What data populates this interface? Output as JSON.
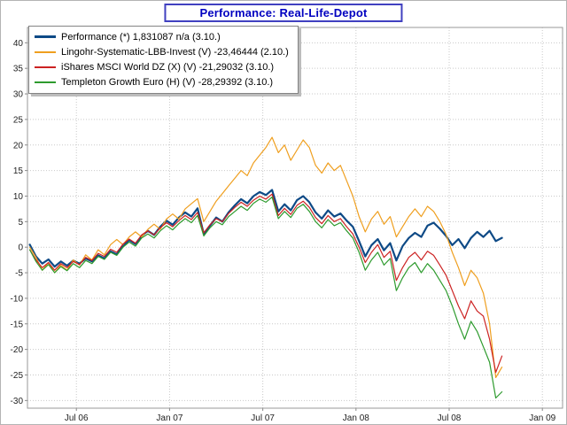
{
  "header": {
    "title": "Performance: Real-Life-Depot"
  },
  "colors": {
    "title_text": "#0000c0",
    "title_border": "#4040c0",
    "gridline": "#c9c9c9",
    "frame": "#9a9a9a",
    "tick_text": "#222222"
  },
  "legend": {
    "position": "top-left",
    "items": [
      {
        "label": "Performance (*) 1,831087 n/a (3.10.)"
      },
      {
        "label": "Lingohr-Systematic-LBB-Invest (V) -23,46444 (2.10.)"
      },
      {
        "label": "iShares MSCI World DZ (X) (V) -21,29032 (3.10.)"
      },
      {
        "label": "Templeton Growth Euro (H) (V) -28,29392 (3.10.)"
      }
    ]
  },
  "chart_data": {
    "type": "line",
    "title": "Performance: Real-Life-Depot",
    "xlabel": "",
    "ylabel": "",
    "grid": "dotted",
    "legend_position": "top-left",
    "x_unit": "months since 2006-04",
    "xlim": [
      -0.15,
      34.3
    ],
    "ylim": [
      -31.5,
      43
    ],
    "y_ticks": [
      40,
      35,
      30,
      25,
      20,
      15,
      10,
      5,
      0,
      -5,
      -10,
      -15,
      -20,
      -25,
      -30
    ],
    "x_ticks": [
      {
        "pos": 3,
        "label": "Jul 06"
      },
      {
        "pos": 9,
        "label": "Jan 07"
      },
      {
        "pos": 15,
        "label": "Jul 07"
      },
      {
        "pos": 21,
        "label": "Jan 08"
      },
      {
        "pos": 27,
        "label": "Jul 08"
      },
      {
        "pos": 33,
        "label": "Jan 09"
      }
    ],
    "x": [
      0,
      0.4,
      0.8,
      1.2,
      1.6,
      2,
      2.4,
      2.8,
      3.2,
      3.6,
      4,
      4.4,
      4.8,
      5.2,
      5.6,
      6,
      6.4,
      6.8,
      7.2,
      7.6,
      8,
      8.4,
      8.8,
      9.2,
      9.6,
      10,
      10.4,
      10.8,
      11.2,
      11.6,
      12,
      12.4,
      12.8,
      13.2,
      13.6,
      14,
      14.4,
      14.8,
      15.2,
      15.6,
      16,
      16.4,
      16.8,
      17.2,
      17.6,
      18,
      18.4,
      18.8,
      19.2,
      19.6,
      20,
      20.4,
      20.8,
      21.2,
      21.6,
      22,
      22.4,
      22.8,
      23.2,
      23.6,
      24,
      24.4,
      24.8,
      25.2,
      25.6,
      26,
      26.4,
      26.8,
      27.2,
      27.6,
      28,
      28.4,
      28.8,
      29.2,
      29.6,
      30,
      30.4
    ],
    "series": [
      {
        "name": "Performance",
        "final_value": "1,831087",
        "final_date": "3.10.",
        "color": "#0e4a86",
        "width": 2.2,
        "values": [
          0.5,
          -1.8,
          -3.2,
          -2.4,
          -3.8,
          -2.8,
          -3.6,
          -2.6,
          -3.2,
          -2.2,
          -2.8,
          -1.6,
          -2.2,
          -0.8,
          -1.4,
          0.2,
          1.4,
          0.6,
          2.2,
          3.2,
          2.4,
          4,
          5.2,
          4.4,
          5.8,
          6.8,
          6,
          7.6,
          2.6,
          4.2,
          5.8,
          5,
          6.8,
          8.2,
          9.4,
          8.6,
          10,
          10.8,
          10.2,
          11.2,
          7,
          8.4,
          7.2,
          9.2,
          10,
          8.8,
          6.8,
          5.6,
          7.2,
          6,
          6.6,
          5.2,
          4,
          1.2,
          -1.8,
          0.4,
          1.6,
          -0.6,
          0.8,
          -2.6,
          0.2,
          1.8,
          2.8,
          2,
          4.2,
          4.8,
          3.6,
          2.2,
          0.4,
          1.6,
          -0.2,
          1.8,
          3,
          2,
          3.2,
          1.2,
          1.83
        ]
      },
      {
        "name": "Lingohr-Systematic-LBB-Invest",
        "final_value": "-23,46444",
        "final_date": "2.10.",
        "color": "#ef9f1f",
        "width": 1.2,
        "values": [
          0,
          -2,
          -4.5,
          -3,
          -5,
          -3.5,
          -4.5,
          -2.5,
          -3.5,
          -1.5,
          -2.5,
          -0.5,
          -1.5,
          0.5,
          1.5,
          0.5,
          2,
          3,
          2,
          3.5,
          4.5,
          3.5,
          5.5,
          6.5,
          5.5,
          7.5,
          8.5,
          9.5,
          5,
          7,
          9,
          10.5,
          12,
          13.5,
          15,
          14,
          16.5,
          18,
          19.5,
          21.5,
          18.5,
          20,
          17,
          19,
          21,
          19.5,
          16,
          14.5,
          16.5,
          15,
          16,
          13,
          10,
          6,
          3,
          5.5,
          7,
          4.5,
          6,
          2,
          4,
          6,
          7.5,
          6,
          8,
          7,
          5,
          2.5,
          -1,
          -4,
          -7.5,
          -4.5,
          -6,
          -9,
          -15,
          -25.5,
          -23.46
        ]
      },
      {
        "name": "iShares MSCI World DZ",
        "final_value": "-21,29032",
        "final_date": "3.10.",
        "color": "#cc2222",
        "width": 1.2,
        "values": [
          -0.5,
          -2.5,
          -4,
          -3,
          -4.5,
          -3.2,
          -4,
          -2.8,
          -3.4,
          -2,
          -2.6,
          -1.2,
          -1.8,
          -0.4,
          -1,
          0.6,
          1.6,
          0.8,
          2.4,
          3.2,
          2.4,
          3.8,
          4.8,
          4,
          5.2,
          6.2,
          5.4,
          6.8,
          2.8,
          4.4,
          5.6,
          5,
          6.6,
          7.8,
          8.8,
          8,
          9.2,
          10,
          9.4,
          10.4,
          6.2,
          7.6,
          6.4,
          8.2,
          9,
          7.8,
          5.8,
          4.6,
          6.2,
          5,
          5.6,
          4,
          2.6,
          0,
          -3,
          -1,
          0.5,
          -2,
          -0.8,
          -6.5,
          -4,
          -2,
          -1,
          -2.5,
          -0.8,
          -1.6,
          -3.5,
          -5.5,
          -8.5,
          -11.5,
          -14,
          -10.5,
          -12.5,
          -13.5,
          -18,
          -24.5,
          -21.29
        ]
      },
      {
        "name": "Templeton Growth Euro",
        "final_value": "-28,29392",
        "final_date": "3.10.",
        "color": "#2e9b2e",
        "width": 1.2,
        "values": [
          -0.5,
          -2.8,
          -4.5,
          -3.4,
          -5,
          -3.8,
          -4.6,
          -3.2,
          -4,
          -2.6,
          -3.2,
          -1.8,
          -2.4,
          -1,
          -1.6,
          0,
          1,
          0.2,
          1.8,
          2.6,
          1.8,
          3.2,
          4.2,
          3.4,
          4.6,
          5.6,
          4.8,
          6.2,
          2.2,
          3.8,
          5,
          4.4,
          6,
          7,
          8,
          7.2,
          8.6,
          9.4,
          8.8,
          9.8,
          5.6,
          7,
          5.8,
          7.6,
          8.4,
          7,
          5,
          3.8,
          5.4,
          4.2,
          4.8,
          3.2,
          1.8,
          -1,
          -4.5,
          -2.5,
          -1,
          -3.5,
          -2.2,
          -8.5,
          -6,
          -4,
          -3,
          -5,
          -3.2,
          -4.5,
          -6.5,
          -8.5,
          -11.5,
          -15,
          -18,
          -14.5,
          -16.5,
          -19.5,
          -22.5,
          -29.5,
          -28.29
        ]
      }
    ]
  }
}
